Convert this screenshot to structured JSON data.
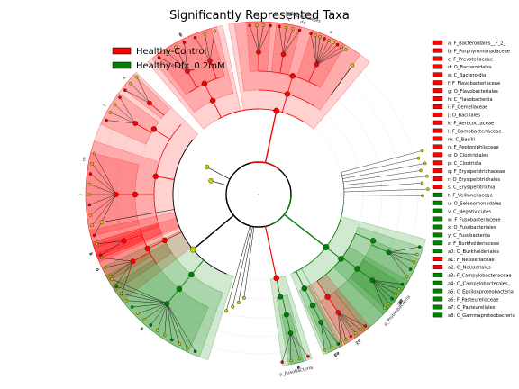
{
  "chart_data": {
    "type": "cladogram",
    "title": "Significantly Represented Taxa",
    "groups": [
      {
        "name": "Healthy-Control",
        "color": "#ff0000"
      },
      {
        "name": "Healthy-Dfx_0.2mM",
        "color": "#008000"
      }
    ],
    "colors": {
      "red": "#ff0000",
      "green": "#008000",
      "neutral": "#cccc00",
      "edge": "#000000"
    },
    "taxa": [
      {
        "key": "a",
        "name": "F_Bacteroidales__F_2_",
        "group": "Healthy-Control"
      },
      {
        "key": "b",
        "name": "F_Porphyromonadaceae",
        "group": "Healthy-Control"
      },
      {
        "key": "c",
        "name": "F_Prevotellaceae",
        "group": "Healthy-Control"
      },
      {
        "key": "d",
        "name": "O_Bacteroidales",
        "group": "Healthy-Control"
      },
      {
        "key": "e",
        "name": "C_Bacteroidia",
        "group": "Healthy-Control"
      },
      {
        "key": "f",
        "name": "F_Flavobacteriaceae",
        "group": "Healthy-Control"
      },
      {
        "key": "g",
        "name": "O_Flavobacteriales",
        "group": "Healthy-Control"
      },
      {
        "key": "h",
        "name": "C_Flavobacteriia",
        "group": "Healthy-Control"
      },
      {
        "key": "i",
        "name": "F_Gemellaceae",
        "group": "Healthy-Control"
      },
      {
        "key": "j",
        "name": "O_Bacillales",
        "group": "Healthy-Control"
      },
      {
        "key": "k",
        "name": "F_Aerococcaceae",
        "group": "Healthy-Control"
      },
      {
        "key": "l",
        "name": "F_Carnobacteriaceae",
        "group": "Healthy-Control"
      },
      {
        "key": "m",
        "name": "C_Bacilli",
        "group": "Healthy-Control"
      },
      {
        "key": "n",
        "name": "F_Peptoniphilaceae",
        "group": "Healthy-Control"
      },
      {
        "key": "o",
        "name": "O_Clostridiales",
        "group": "Healthy-Control"
      },
      {
        "key": "p",
        "name": "C_Clostridia",
        "group": "Healthy-Control"
      },
      {
        "key": "q",
        "name": "F_Erysipelotrichaceae",
        "group": "Healthy-Control"
      },
      {
        "key": "r",
        "name": "O_Erysipelotrichales",
        "group": "Healthy-Control"
      },
      {
        "key": "s",
        "name": "C_Erysipelotrichia",
        "group": "Healthy-Control"
      },
      {
        "key": "t",
        "name": "F_Veillonellaceae",
        "group": "Healthy-Dfx_0.2mM"
      },
      {
        "key": "u",
        "name": "O_Selenomonadales",
        "group": "Healthy-Dfx_0.2mM"
      },
      {
        "key": "v",
        "name": "C_Negativicutes",
        "group": "Healthy-Dfx_0.2mM"
      },
      {
        "key": "w",
        "name": "F_Fusobacteriaceae",
        "group": "Healthy-Dfx_0.2mM"
      },
      {
        "key": "x",
        "name": "O_Fusobacteriales",
        "group": "Healthy-Dfx_0.2mM"
      },
      {
        "key": "y",
        "name": "C_Fusobacteriia",
        "group": "Healthy-Dfx_0.2mM"
      },
      {
        "key": "z",
        "name": "F_Burkholderiaceae",
        "group": "Healthy-Dfx_0.2mM"
      },
      {
        "key": "a0",
        "name": "O_Burkholderiales",
        "group": "Healthy-Dfx_0.2mM"
      },
      {
        "key": "a1",
        "name": "F_Neisseriaceae",
        "group": "Healthy-Control"
      },
      {
        "key": "a2",
        "name": "O_Neisseriales",
        "group": "Healthy-Control"
      },
      {
        "key": "a3",
        "name": "F_Campylobacteraceae",
        "group": "Healthy-Dfx_0.2mM"
      },
      {
        "key": "a4",
        "name": "O_Campylobacterales",
        "group": "Healthy-Dfx_0.2mM"
      },
      {
        "key": "a5",
        "name": "C_Epsilonproteobacteria",
        "group": "Healthy-Dfx_0.2mM"
      },
      {
        "key": "a6",
        "name": "F_Pasteurellaceae",
        "group": "Healthy-Dfx_0.2mM"
      },
      {
        "key": "a7",
        "name": "O_Pasteurellales",
        "group": "Healthy-Dfx_0.2mM"
      },
      {
        "key": "a8",
        "name": "C_Gammaproteobacteria",
        "group": "Healthy-Dfx_0.2mM"
      }
    ],
    "phylum_labels": [
      "p_Bacteroidetes",
      "p_Proteobacteria",
      "p_Fusobacteria"
    ]
  }
}
